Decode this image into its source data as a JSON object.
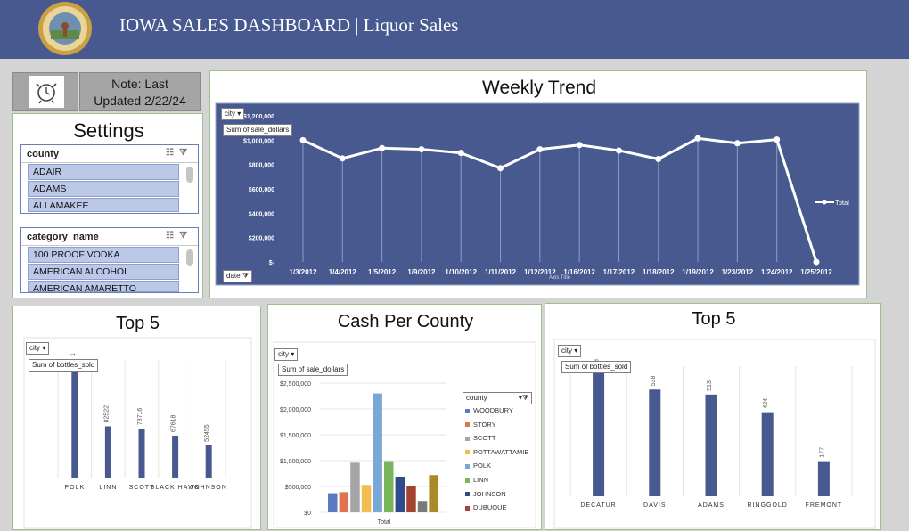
{
  "header": {
    "title": "IOWA SALES DASHBOARD | Liquor Sales",
    "bg": "#47598f"
  },
  "note": {
    "line1": "Note: Last",
    "line2": "Updated 2/22/24"
  },
  "settings": {
    "title": "Settings",
    "county_slicer": {
      "header": "county",
      "items": [
        "ADAIR",
        "ADAMS",
        "ALLAMAKEE"
      ]
    },
    "category_slicer": {
      "header": "category_name",
      "items": [
        "100 PROOF VODKA",
        "AMERICAN ALCOHOL",
        "AMERICAN AMARETTO"
      ]
    }
  },
  "weekly": {
    "title": "Weekly Trend",
    "filter": "city",
    "value_field": "Sum of sale_dollars",
    "axis_field": "date",
    "axis_title": "Axis Title",
    "legend": "Total"
  },
  "top5_left": {
    "title": "Top 5",
    "filter": "city",
    "value_field": "Sum of bottles_sold"
  },
  "cash": {
    "title": "Cash Per County",
    "filter": "city",
    "value_field": "Sum of sale_dollars",
    "legend_title": "county",
    "xlabel": "Total"
  },
  "top5_right": {
    "title": "Top 5",
    "filter": "city",
    "value_field": "Sum of bottles_sold"
  },
  "chart_data": [
    {
      "type": "line",
      "title": "Weekly Trend",
      "categories": [
        "1/3/2012",
        "1/4/2012",
        "1/5/2012",
        "1/9/2012",
        "1/10/2012",
        "1/11/2012",
        "1/12/2012",
        "1/16/2012",
        "1/17/2012",
        "1/18/2012",
        "1/19/2012",
        "1/23/2012",
        "1/24/2012",
        "1/25/2012"
      ],
      "series": [
        {
          "name": "Total",
          "values": [
            1000000,
            850000,
            935000,
            925000,
            895000,
            770000,
            925000,
            960000,
            915000,
            845000,
            1015000,
            975000,
            1005000,
            0
          ]
        }
      ],
      "xlabel": "Axis Title",
      "ylabel": "",
      "ylim": [
        0,
        1200000
      ],
      "yticks": [
        0,
        200000,
        400000,
        600000,
        800000,
        1000000,
        1200000
      ],
      "ytick_labels": [
        "$-",
        "$200,000",
        "$400,000",
        "$600,000",
        "$800,000",
        "$1,000,000",
        "$1,200,000"
      ],
      "colors": {
        "background": "#47598f",
        "line": "#ffffff"
      },
      "grid": false,
      "legend": "right"
    },
    {
      "type": "bar",
      "title": "Top 5",
      "categories": [
        "POLK",
        "LINN",
        "SCOTT",
        "BLACK HAWK",
        "JOHNSON"
      ],
      "values": [
        null,
        82522,
        78716,
        67618,
        52455
      ],
      "data_labels": [
        "1",
        "82522",
        "78716",
        "67618",
        "52455"
      ],
      "color": "#47598f",
      "grid": true
    },
    {
      "type": "bar",
      "title": "Cash Per County",
      "categories": [
        "Total"
      ],
      "series": [
        {
          "name": "",
          "value": 370000,
          "color": "#5b7bc0"
        },
        {
          "name": "",
          "value": 390000,
          "color": "#e0744e"
        },
        {
          "name": "",
          "value": 960000,
          "color": "#a5a5a5"
        },
        {
          "name": "",
          "value": 530000,
          "color": "#f2bd4e"
        },
        {
          "name": "",
          "value": 2300000,
          "color": "#79a7d8"
        },
        {
          "name": "",
          "value": 990000,
          "color": "#7ab55c"
        },
        {
          "name": "",
          "value": 690000,
          "color": "#2f4b8a"
        },
        {
          "name": "",
          "value": 500000,
          "color": "#a2442f"
        },
        {
          "name": "",
          "value": 220000,
          "color": "#7a7a7a"
        },
        {
          "name": "",
          "value": 720000,
          "color": "#a98a2a"
        }
      ],
      "legend_entries": [
        {
          "label": "WOODBURY",
          "color": "#5b7bc0"
        },
        {
          "label": "STORY",
          "color": "#e0744e"
        },
        {
          "label": "SCOTT",
          "color": "#a5a5a5"
        },
        {
          "label": "POTTAWATTAMIE",
          "color": "#f2bd4e"
        },
        {
          "label": "POLK",
          "color": "#79a7d8"
        },
        {
          "label": "LINN",
          "color": "#7ab55c"
        },
        {
          "label": "JOHNSON",
          "color": "#2f4b8a"
        },
        {
          "label": "DUBUQUE",
          "color": "#a2442f"
        }
      ],
      "ylim": [
        0,
        2500000
      ],
      "yticks": [
        0,
        500000,
        1000000,
        1500000,
        2000000,
        2500000
      ],
      "ytick_labels": [
        "$0",
        "$500,000",
        "$1,000,000",
        "$1,500,000",
        "$2,000,000",
        "$2,500,000"
      ],
      "xlabel": "Total",
      "legend": "right"
    },
    {
      "type": "bar",
      "title": "Top 5",
      "categories": [
        "DECATUR",
        "DAVIS",
        "ADAMS",
        "RINGGOLD",
        "FREMONT"
      ],
      "values": [
        null,
        538,
        513,
        424,
        177
      ],
      "data_labels": [
        "8",
        "538",
        "513",
        "424",
        "177"
      ],
      "color": "#47598f",
      "grid": true
    }
  ]
}
